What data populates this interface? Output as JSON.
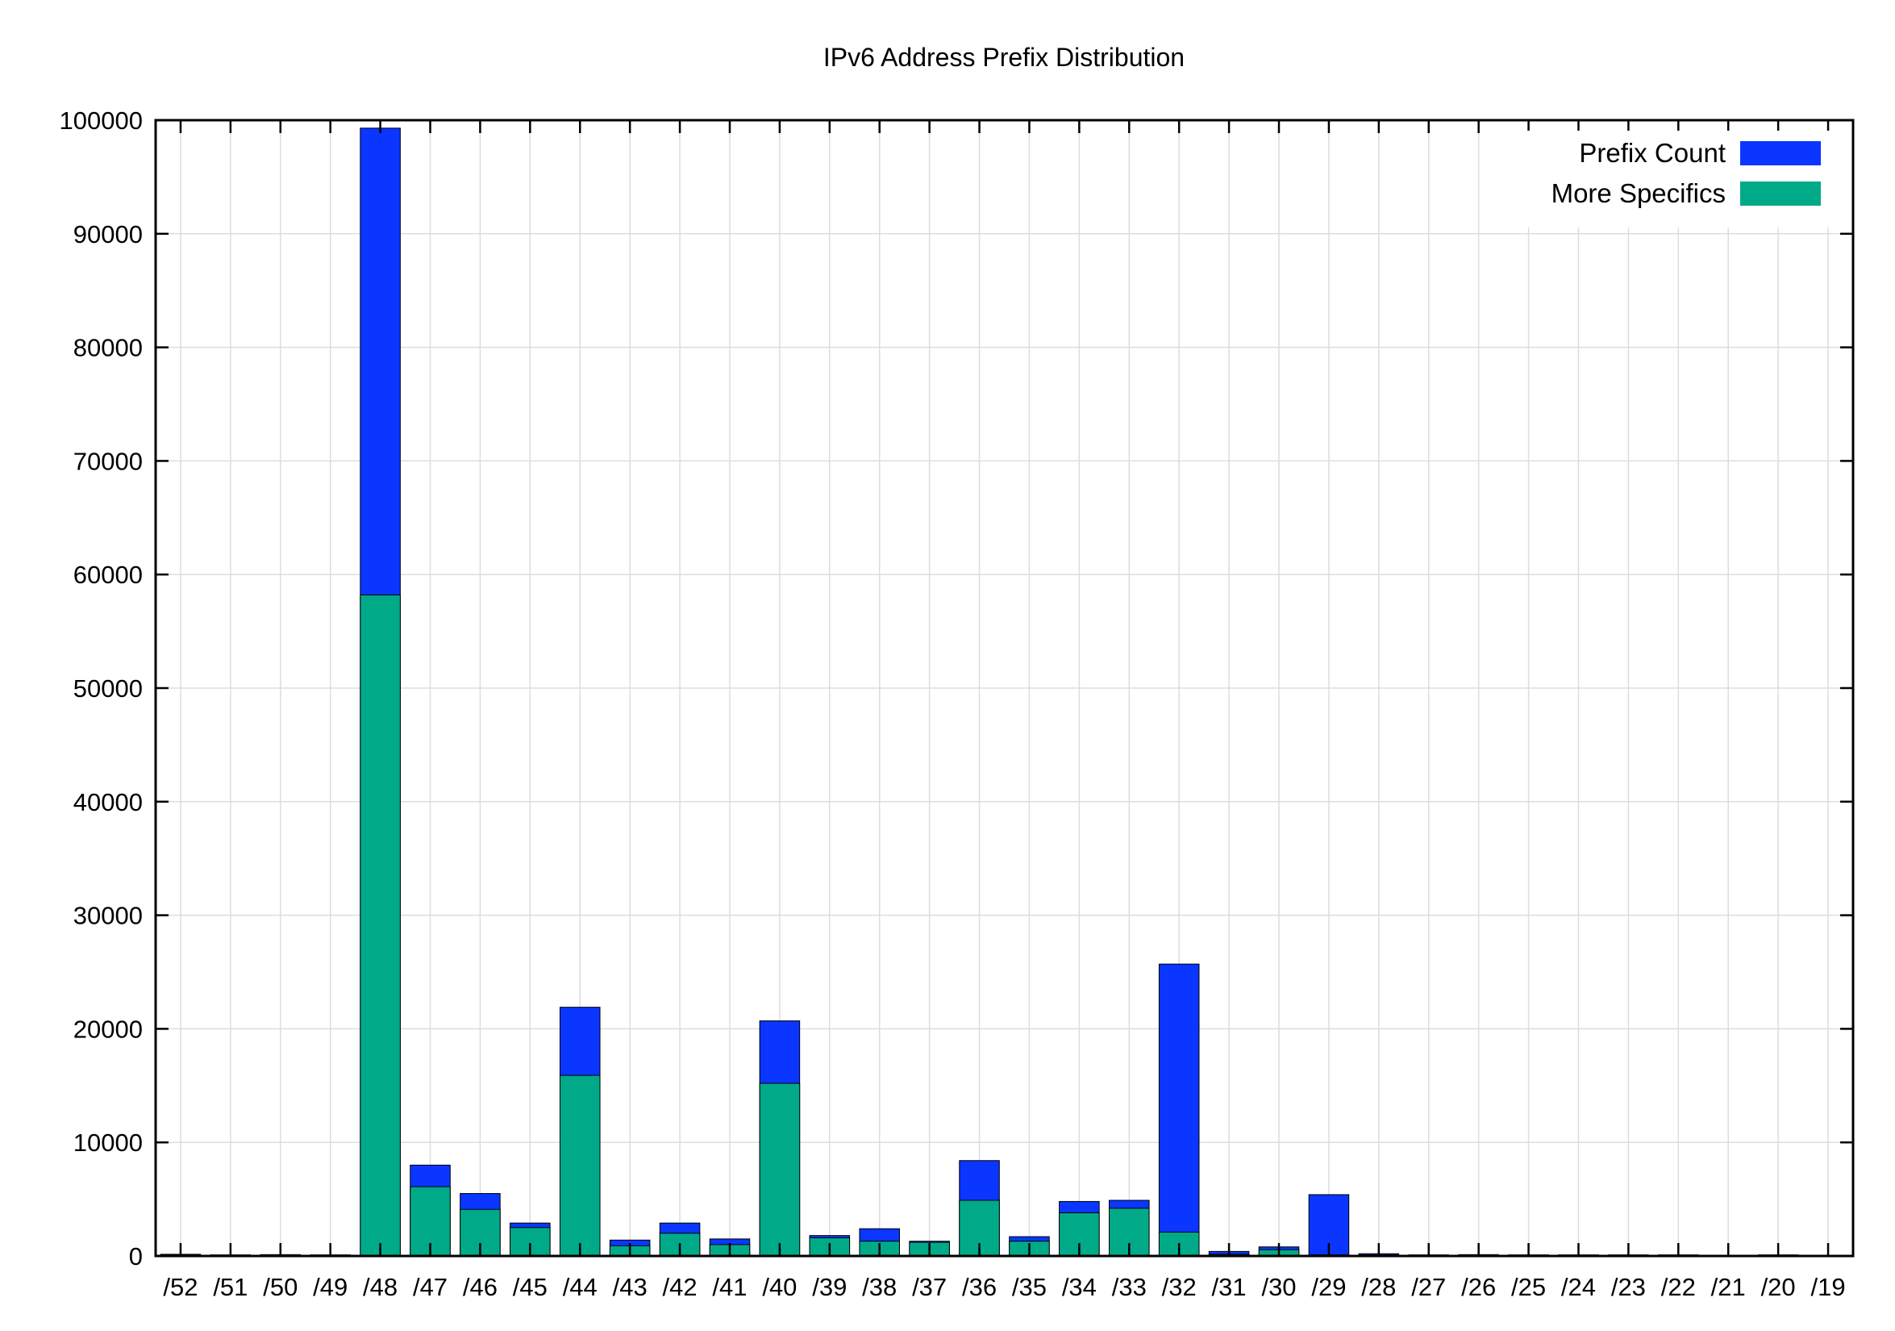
{
  "chart_data": {
    "type": "bar",
    "stacking": "overlay",
    "title": "IPv6 Address Prefix Distribution",
    "xlabel": "",
    "ylabel": "",
    "ylim": [
      0,
      100000
    ],
    "yticks": [
      0,
      10000,
      20000,
      30000,
      40000,
      50000,
      60000,
      70000,
      80000,
      90000,
      100000
    ],
    "ytick_labels": [
      "0",
      "10000",
      "20000",
      "30000",
      "40000",
      "50000",
      "60000",
      "70000",
      "80000",
      "90000",
      "100000"
    ],
    "grid": true,
    "legend_position": "top-right",
    "categories": [
      "/52",
      "/51",
      "/50",
      "/49",
      "/48",
      "/47",
      "/46",
      "/45",
      "/44",
      "/43",
      "/42",
      "/41",
      "/40",
      "/39",
      "/38",
      "/37",
      "/36",
      "/35",
      "/34",
      "/33",
      "/32",
      "/31",
      "/30",
      "/29",
      "/28",
      "/27",
      "/26",
      "/25",
      "/24",
      "/23",
      "/22",
      "/21",
      "/20",
      "/19"
    ],
    "series": [
      {
        "name": "Prefix Count",
        "color": "#0a36ff",
        "values": [
          150,
          100,
          120,
          100,
          99300,
          8000,
          5500,
          2900,
          21900,
          1400,
          2900,
          1500,
          20700,
          1800,
          2400,
          1300,
          8400,
          1700,
          4800,
          4900,
          25700,
          400,
          800,
          5400,
          200,
          100,
          120,
          100,
          100,
          100,
          100,
          40,
          100,
          20
        ]
      },
      {
        "name": "More Specifics",
        "color": "#00aa88",
        "values": [
          100,
          50,
          60,
          50,
          58200,
          6100,
          4100,
          2500,
          15900,
          900,
          2000,
          1000,
          15200,
          1600,
          1300,
          1200,
          4900,
          1300,
          3800,
          4200,
          2100,
          150,
          550,
          100,
          100,
          50,
          60,
          50,
          50,
          50,
          50,
          20,
          50,
          10
        ]
      }
    ]
  }
}
